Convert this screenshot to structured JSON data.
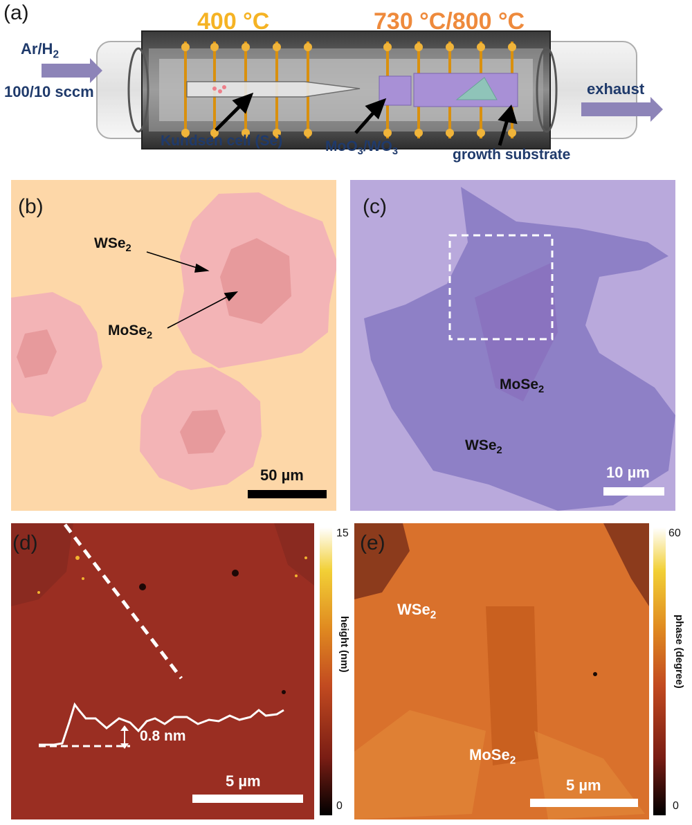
{
  "panel_a": {
    "label": "(a)",
    "gas_label": "Ar/H",
    "gas_sub": "2",
    "flow_label": "100/10 sccm",
    "temp_low": "400 °C",
    "temp_high": "730 °C/800 °C",
    "exhaust_label": "exhaust",
    "kundsen_label": "Kundsen cell (Se)",
    "precursor_label_a": "MoO",
    "precursor_sub_a": "3",
    "precursor_label_b": "/WO",
    "precursor_sub_b": "3",
    "substrate_label": "growth substrate",
    "colors": {
      "temp_low": "#f5b324",
      "temp_high": "#ee8a3c",
      "text_navy": "#1f3a6b",
      "arrow_purple": "#8d84b8"
    }
  },
  "panel_b": {
    "label": "(b)",
    "wse2_label": "WSe",
    "wse2_sub": "2",
    "mose2_label": "MoSe",
    "mose2_sub": "2",
    "scale_label": "50 µm",
    "colors": {
      "background": "#fdd7a8",
      "outer_flake": "#f3b4b6",
      "inner_flake": "#e79a9c"
    }
  },
  "panel_c": {
    "label": "(c)",
    "mose2_label": "MoSe",
    "mose2_sub": "2",
    "wse2_label": "WSe",
    "wse2_sub": "2",
    "scale_label": "10 µm",
    "colors": {
      "background": "#b9a9dc",
      "flake": "#8e80c6",
      "inner": "#8a71bd"
    }
  },
  "panel_d": {
    "label": "(d)",
    "profile_label": "0.8 nm",
    "scale_label": "5 µm",
    "colorbar_max": "15",
    "colorbar_min": "0",
    "colorbar_title": "height (nm)",
    "colors": {
      "background": "#9a2e22"
    }
  },
  "panel_e": {
    "label": "(e)",
    "wse2_label": "WSe",
    "wse2_sub": "2",
    "mose2_label": "MoSe",
    "mose2_sub": "2",
    "scale_label": "5 µm",
    "colorbar_max": "60",
    "colorbar_min": "0",
    "colorbar_title": "phase (degree)",
    "colors": {
      "background": "#d9712c"
    }
  }
}
